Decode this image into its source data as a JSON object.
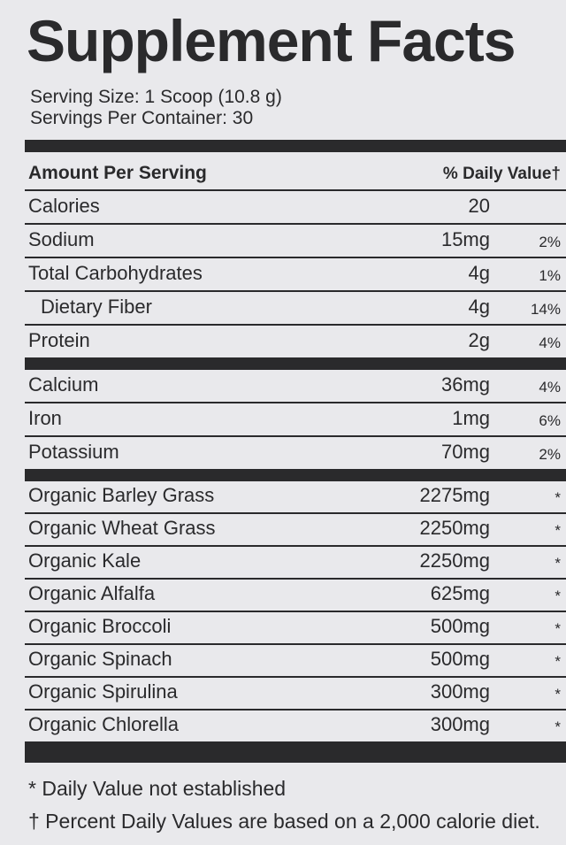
{
  "title": "Supplement Facts",
  "serving_size": "Serving Size: 1 Scoop (10.8 g)",
  "servings_per_container": "Servings Per Container: 30",
  "header": {
    "amount": "Amount Per Serving",
    "daily_value": "% Daily Value†"
  },
  "sections": [
    [
      {
        "name": "Calories",
        "amount": "20"
      },
      {
        "name": "Sodium",
        "amount": "15mg",
        "dv": "2%"
      },
      {
        "name": "Total Carbohydrates",
        "amount": "4g",
        "dv": "1%"
      },
      {
        "name": "Dietary Fiber",
        "amount": "4g",
        "dv": "14%",
        "indent": true
      },
      {
        "name": "Protein",
        "amount": "2g",
        "dv": "4%"
      }
    ],
    [
      {
        "name": "Calcium",
        "amount": "36mg",
        "dv": "4%"
      },
      {
        "name": "Iron",
        "amount": "1mg",
        "dv": "6%"
      },
      {
        "name": "Potassium",
        "amount": "70mg",
        "dv": "2%"
      }
    ],
    [
      {
        "name": "Organic Barley Grass",
        "amount": "2275mg",
        "dv": "*"
      },
      {
        "name": "Organic Wheat Grass",
        "amount": "2250mg",
        "dv": "*"
      },
      {
        "name": "Organic Kale",
        "amount": "2250mg",
        "dv": "*"
      },
      {
        "name": "Organic Alfalfa",
        "amount": "625mg",
        "dv": "*"
      },
      {
        "name": "Organic Broccoli",
        "amount": "500mg",
        "dv": "*"
      },
      {
        "name": "Organic Spinach",
        "amount": "500mg",
        "dv": "*"
      },
      {
        "name": "Organic Spirulina",
        "amount": "300mg",
        "dv": "*"
      },
      {
        "name": "Organic Chlorella",
        "amount": "300mg",
        "dv": "*"
      }
    ]
  ],
  "footnotes": [
    "* Daily Value not established",
    "† Percent Daily Values are based on a 2,000 calorie diet."
  ]
}
